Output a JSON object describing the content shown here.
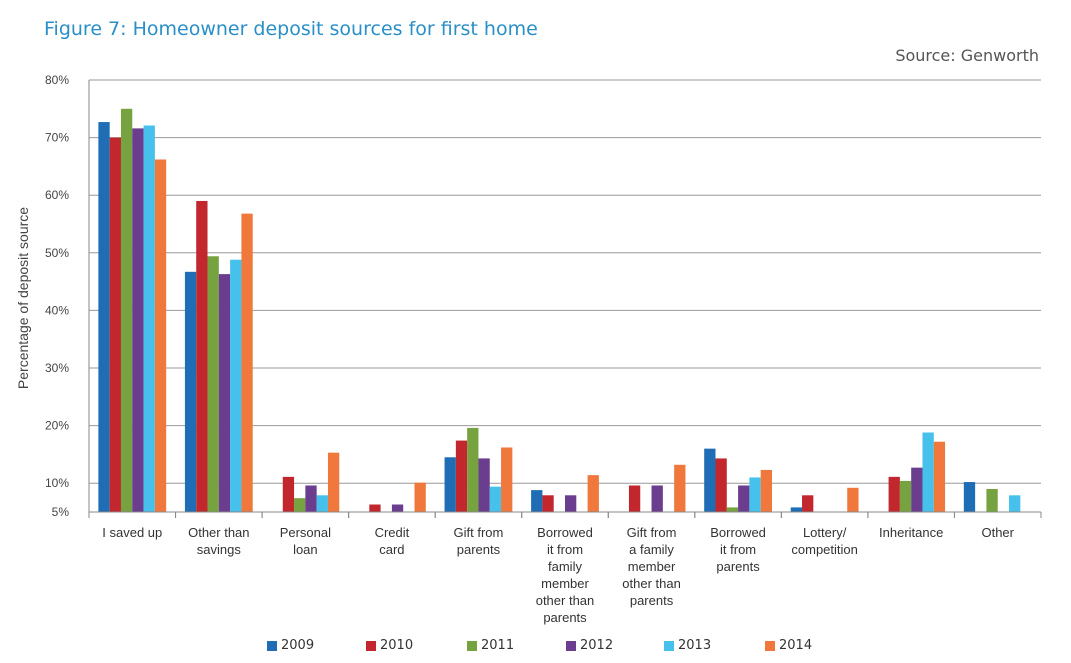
{
  "title": "Figure 7: Homeowner deposit sources for first home",
  "source": "Source: Genworth",
  "chart_data": {
    "type": "bar",
    "title": "Figure 7: Homeowner deposit sources for first home",
    "ylabel": "Percentage of deposit source",
    "xlabel": "",
    "ylim": [
      5,
      80
    ],
    "yticks": [
      5,
      10,
      20,
      30,
      40,
      50,
      60,
      70,
      80
    ],
    "yticklabels": [
      "5%",
      "10%",
      "20%",
      "30%",
      "40%",
      "50%",
      "60%",
      "70%",
      "80%"
    ],
    "grid": true,
    "legend_position": "bottom",
    "categories": [
      [
        "I saved up"
      ],
      [
        "Other than",
        "savings"
      ],
      [
        "Personal",
        "loan"
      ],
      [
        "Credit",
        "card"
      ],
      [
        "Gift from",
        "parents"
      ],
      [
        "Borrowed",
        "it from",
        "family",
        "member",
        "other than",
        "parents"
      ],
      [
        "Gift from",
        "a family",
        "member",
        "other than",
        "parents"
      ],
      [
        "Borrowed",
        "it from",
        "parents"
      ],
      [
        "Lottery/",
        "competition"
      ],
      [
        "Inheritance"
      ],
      [
        "Other"
      ]
    ],
    "series": [
      {
        "name": "2009",
        "color": "#1f6db5",
        "values": [
          72.7,
          46.7,
          4.3,
          1.5,
          14.5,
          8.8,
          1.5,
          16.0,
          5.8,
          4.3,
          10.2
        ]
      },
      {
        "name": "2010",
        "color": "#c1272d",
        "values": [
          70.0,
          59.0,
          11.1,
          6.3,
          17.4,
          7.9,
          9.6,
          14.3,
          7.9,
          11.1,
          1.5
        ]
      },
      {
        "name": "2011",
        "color": "#76a33f",
        "values": [
          75.0,
          49.4,
          7.4,
          4.3,
          19.6,
          4.3,
          1.5,
          5.8,
          1.5,
          10.4,
          9.0
        ]
      },
      {
        "name": "2012",
        "color": "#6a3d8f",
        "values": [
          71.6,
          46.3,
          9.6,
          6.3,
          14.3,
          7.9,
          9.6,
          9.6,
          1.5,
          12.7,
          3.1
        ]
      },
      {
        "name": "2013",
        "color": "#45c1ec",
        "values": [
          72.1,
          48.8,
          7.9,
          3.1,
          9.4,
          4.7,
          4.7,
          11.0,
          4.7,
          18.8,
          7.9
        ]
      },
      {
        "name": "2014",
        "color": "#f0783c",
        "values": [
          66.2,
          56.8,
          15.3,
          10.1,
          16.2,
          11.4,
          13.2,
          12.3,
          9.2,
          17.2,
          3.0
        ]
      }
    ]
  }
}
